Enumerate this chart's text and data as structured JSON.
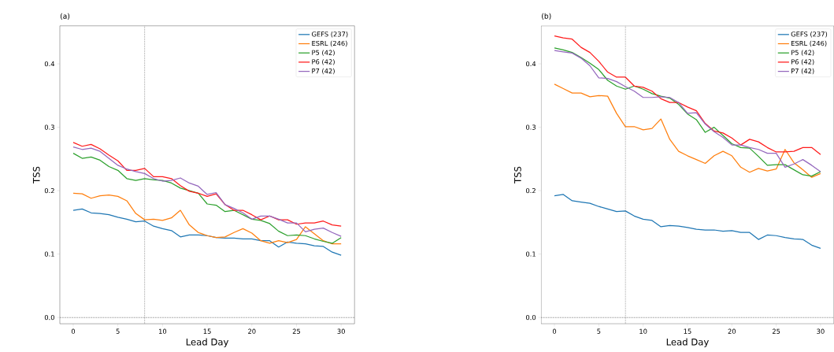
{
  "chart_data": [
    {
      "type": "line",
      "title": "(a)",
      "xlabel": "Lead Day",
      "ylabel": "TSS",
      "x": [
        0,
        1,
        2,
        3,
        4,
        5,
        6,
        7,
        8,
        9,
        10,
        11,
        12,
        13,
        14,
        15,
        16,
        17,
        18,
        19,
        20,
        21,
        22,
        23,
        24,
        25,
        26,
        27,
        28,
        29,
        30
      ],
      "series": [
        {
          "name": "GEFS (237)",
          "color": "#1f77b4",
          "values": [
            0.169,
            0.171,
            0.165,
            0.164,
            0.162,
            0.158,
            0.155,
            0.151,
            0.152,
            0.144,
            0.14,
            0.137,
            0.127,
            0.13,
            0.13,
            0.129,
            0.126,
            0.125,
            0.125,
            0.124,
            0.124,
            0.121,
            0.121,
            0.111,
            0.119,
            0.117,
            0.116,
            0.113,
            0.112,
            0.103,
            0.098
          ]
        },
        {
          "name": "ESRL (246)",
          "color": "#ff7f0e",
          "values": [
            0.196,
            0.195,
            0.188,
            0.192,
            0.193,
            0.191,
            0.184,
            0.164,
            0.154,
            0.155,
            0.153,
            0.157,
            0.169,
            0.146,
            0.134,
            0.129,
            0.126,
            0.127,
            0.134,
            0.14,
            0.133,
            0.121,
            0.117,
            0.121,
            0.118,
            0.123,
            0.143,
            0.132,
            0.121,
            0.116,
            0.116
          ]
        },
        {
          "name": "P5 (42)",
          "color": "#2ca02c",
          "values": [
            0.259,
            0.251,
            0.253,
            0.248,
            0.238,
            0.232,
            0.219,
            0.216,
            0.219,
            0.217,
            0.216,
            0.212,
            0.204,
            0.2,
            0.196,
            0.179,
            0.177,
            0.167,
            0.169,
            0.162,
            0.155,
            0.153,
            0.148,
            0.136,
            0.129,
            0.13,
            0.129,
            0.124,
            0.12,
            0.117,
            0.126
          ]
        },
        {
          "name": "P6 (42)",
          "color": "#ff1a1a",
          "values": [
            0.276,
            0.27,
            0.273,
            0.266,
            0.256,
            0.247,
            0.232,
            0.232,
            0.235,
            0.222,
            0.222,
            0.219,
            0.208,
            0.199,
            0.196,
            0.191,
            0.195,
            0.178,
            0.169,
            0.169,
            0.162,
            0.154,
            0.16,
            0.154,
            0.154,
            0.147,
            0.149,
            0.149,
            0.152,
            0.146,
            0.144
          ]
        },
        {
          "name": "P7 (42)",
          "color": "#9467bd",
          "values": [
            0.269,
            0.265,
            0.267,
            0.262,
            0.251,
            0.24,
            0.234,
            0.23,
            0.227,
            0.219,
            0.215,
            0.216,
            0.22,
            0.212,
            0.207,
            0.194,
            0.197,
            0.178,
            0.172,
            0.165,
            0.155,
            0.16,
            0.16,
            0.155,
            0.149,
            0.149,
            0.135,
            0.139,
            0.141,
            0.134,
            0.128
          ]
        }
      ],
      "xlim": [
        -1.5,
        31.5
      ],
      "ylim": [
        -0.01,
        0.46
      ],
      "xticks": [
        0,
        5,
        10,
        15,
        20,
        25,
        30
      ],
      "yticks": [
        {
          "value": 0,
          "label": "0.0"
        },
        0.1,
        0.2,
        0.3,
        0.4
      ],
      "ref_lines": [
        {
          "axis": "y",
          "value": 0,
          "color": "#000000",
          "line_style": "dotted"
        },
        {
          "axis": "x",
          "value": 8,
          "color": "#555555",
          "line_style": "dotted"
        }
      ],
      "legend": "top right",
      "grid": false,
      "marker": "none",
      "line_style": "solid"
    },
    {
      "type": "line",
      "title": "(b)",
      "xlabel": "Lead Day",
      "ylabel": "TSS",
      "x": [
        0,
        1,
        2,
        3,
        4,
        5,
        6,
        7,
        8,
        9,
        10,
        11,
        12,
        13,
        14,
        15,
        16,
        17,
        18,
        19,
        20,
        21,
        22,
        23,
        24,
        25,
        26,
        27,
        28,
        29,
        30
      ],
      "series": [
        {
          "name": "GEFS (237)",
          "color": "#1f77b4",
          "values": [
            0.192,
            0.194,
            0.184,
            0.182,
            0.18,
            0.175,
            0.171,
            0.167,
            0.168,
            0.16,
            0.155,
            0.153,
            0.143,
            0.145,
            0.144,
            0.142,
            0.139,
            0.138,
            0.138,
            0.136,
            0.137,
            0.134,
            0.134,
            0.123,
            0.13,
            0.129,
            0.126,
            0.124,
            0.123,
            0.114,
            0.109
          ]
        },
        {
          "name": "ESRL (246)",
          "color": "#ff7f0e",
          "values": [
            0.368,
            0.361,
            0.354,
            0.354,
            0.348,
            0.35,
            0.349,
            0.322,
            0.301,
            0.301,
            0.296,
            0.298,
            0.313,
            0.281,
            0.262,
            0.255,
            0.249,
            0.243,
            0.255,
            0.262,
            0.255,
            0.237,
            0.229,
            0.235,
            0.231,
            0.234,
            0.265,
            0.244,
            0.233,
            0.221,
            0.227
          ]
        },
        {
          "name": "P5 (42)",
          "color": "#2ca02c",
          "values": [
            0.425,
            0.422,
            0.418,
            0.41,
            0.401,
            0.391,
            0.374,
            0.365,
            0.36,
            0.365,
            0.36,
            0.353,
            0.349,
            0.346,
            0.336,
            0.321,
            0.312,
            0.292,
            0.3,
            0.287,
            0.274,
            0.268,
            0.267,
            0.254,
            0.24,
            0.241,
            0.241,
            0.233,
            0.225,
            0.223,
            0.23
          ]
        },
        {
          "name": "P6 (42)",
          "color": "#ff1a1a",
          "values": [
            0.444,
            0.441,
            0.439,
            0.426,
            0.418,
            0.404,
            0.387,
            0.379,
            0.379,
            0.365,
            0.363,
            0.357,
            0.345,
            0.339,
            0.339,
            0.332,
            0.326,
            0.306,
            0.294,
            0.291,
            0.283,
            0.272,
            0.281,
            0.277,
            0.268,
            0.261,
            0.261,
            0.262,
            0.268,
            0.268,
            0.257
          ]
        },
        {
          "name": "P7 (42)",
          "color": "#9467bd",
          "values": [
            0.421,
            0.419,
            0.417,
            0.409,
            0.397,
            0.378,
            0.377,
            0.372,
            0.364,
            0.357,
            0.347,
            0.347,
            0.348,
            0.347,
            0.339,
            0.322,
            0.323,
            0.305,
            0.293,
            0.284,
            0.272,
            0.272,
            0.268,
            0.265,
            0.259,
            0.259,
            0.237,
            0.242,
            0.249,
            0.24,
            0.23
          ]
        }
      ],
      "xlim": [
        -1.5,
        31.5
      ],
      "ylim": [
        -0.01,
        0.46
      ],
      "xticks": [
        0,
        5,
        10,
        15,
        20,
        25,
        30
      ],
      "yticks": [
        {
          "value": 0,
          "label": "0.0"
        },
        0.1,
        0.2,
        0.3,
        0.4
      ],
      "ref_lines": [
        {
          "axis": "y",
          "value": 0,
          "color": "#000000",
          "line_style": "dotted"
        },
        {
          "axis": "x",
          "value": 8,
          "color": "#555555",
          "line_style": "dotted"
        }
      ],
      "legend": "top right",
      "grid": false,
      "marker": "none",
      "line_style": "solid"
    }
  ]
}
